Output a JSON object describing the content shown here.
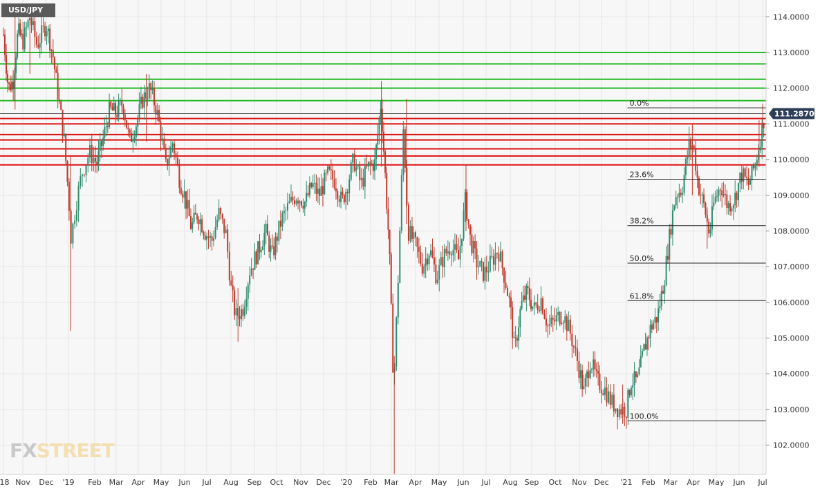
{
  "symbol": "USD/JPY",
  "logo": {
    "fx": "FX",
    "street": "STREET"
  },
  "colors": {
    "background": "#f7f7f7",
    "up": "#2e8b6e",
    "down": "#c0392b",
    "support": "#dd1111",
    "resistance": "#22bb22",
    "price_tag": "#2c3e5a",
    "grid": "#e6e6e6",
    "fib": "#222222"
  },
  "chart_data": {
    "type": "candlestick",
    "title": "",
    "ylim": [
      101.2,
      114.45
    ],
    "y_ticks": [
      "114.0000",
      "113.0000",
      "112.0000",
      "111.0000",
      "110.0000",
      "109.0000",
      "108.0000",
      "107.0000",
      "106.0000",
      "105.0000",
      "104.0000",
      "103.0000",
      "102.0000"
    ],
    "y_tick_values": [
      114,
      113,
      112,
      111,
      110,
      109,
      108,
      107,
      106,
      105,
      104,
      103,
      102
    ],
    "x_ticks": [
      "'18",
      "Nov",
      "Dec",
      "'19",
      "Feb",
      "Mar",
      "Apr",
      "May",
      "Jun",
      "Jul",
      "Aug",
      "Sep",
      "Oct",
      "Nov",
      "Dec",
      "'20",
      "Feb",
      "Mar",
      "Apr",
      "May",
      "Jun",
      "Jul",
      "Aug",
      "Sep",
      "Oct",
      "Nov",
      "Dec",
      "'21",
      "Feb",
      "Mar",
      "Apr",
      "May",
      "Jun",
      "Jul"
    ],
    "x_tick_index": [
      0,
      1,
      2,
      3,
      4,
      5,
      6,
      7,
      8,
      9,
      10,
      11,
      12,
      13,
      14,
      15,
      16,
      17,
      18,
      19,
      20,
      21,
      22,
      23,
      24,
      25,
      26,
      27,
      28,
      29,
      30,
      31,
      32,
      33
    ],
    "last_price": 111.287,
    "last_price_label": "111.2870",
    "resistance_levels": [
      113.0,
      112.68,
      112.25,
      112.0,
      111.65
    ],
    "support_levels": [
      111.15,
      111.0,
      110.7,
      110.55,
      110.3,
      110.1,
      109.85
    ],
    "fib_levels": [
      {
        "label": "0.0%",
        "value": 111.45
      },
      {
        "label": "23.6%",
        "value": 109.45
      },
      {
        "label": "38.2%",
        "value": 108.15
      },
      {
        "label": "50.0%",
        "value": 107.1
      },
      {
        "label": "61.8%",
        "value": 106.05
      },
      {
        "label": "100.0%",
        "value": 102.68
      }
    ],
    "price_path": [
      [
        0.0,
        113.5
      ],
      [
        0.25,
        112.0
      ],
      [
        0.5,
        112.2
      ],
      [
        0.75,
        113.6
      ],
      [
        1.0,
        113.3
      ],
      [
        1.3,
        114.0
      ],
      [
        1.6,
        113.2
      ],
      [
        2.0,
        113.8
      ],
      [
        2.3,
        112.9
      ],
      [
        2.6,
        111.5
      ],
      [
        2.8,
        110.6
      ],
      [
        3.0,
        109.0
      ],
      [
        3.1,
        107.8
      ],
      [
        3.3,
        108.8
      ],
      [
        3.5,
        109.6
      ],
      [
        3.8,
        110.2
      ],
      [
        4.1,
        109.9
      ],
      [
        4.4,
        110.6
      ],
      [
        4.7,
        111.4
      ],
      [
        5.0,
        111.3
      ],
      [
        5.3,
        111.6
      ],
      [
        5.6,
        110.5
      ],
      [
        5.9,
        111.0
      ],
      [
        6.2,
        111.7
      ],
      [
        6.5,
        112.0
      ],
      [
        6.8,
        111.4
      ],
      [
        7.0,
        110.7
      ],
      [
        7.2,
        109.8
      ],
      [
        7.5,
        110.5
      ],
      [
        7.8,
        109.4
      ],
      [
        8.0,
        109.0
      ],
      [
        8.3,
        108.1
      ],
      [
        8.6,
        108.5
      ],
      [
        8.9,
        108.0
      ],
      [
        9.2,
        107.7
      ],
      [
        9.5,
        108.5
      ],
      [
        9.8,
        107.9
      ],
      [
        10.0,
        106.4
      ],
      [
        10.2,
        105.6
      ],
      [
        10.5,
        105.8
      ],
      [
        10.8,
        106.9
      ],
      [
        11.2,
        107.5
      ],
      [
        11.5,
        108.0
      ],
      [
        11.8,
        107.3
      ],
      [
        12.2,
        108.3
      ],
      [
        12.5,
        108.7
      ],
      [
        12.8,
        109.0
      ],
      [
        13.2,
        108.8
      ],
      [
        13.5,
        109.3
      ],
      [
        13.8,
        109.0
      ],
      [
        14.2,
        109.6
      ],
      [
        14.5,
        109.4
      ],
      [
        14.8,
        108.8
      ],
      [
        15.0,
        109.2
      ],
      [
        15.3,
        110.0
      ],
      [
        15.6,
        109.3
      ],
      [
        15.9,
        109.8
      ],
      [
        16.2,
        109.9
      ],
      [
        16.5,
        111.6
      ],
      [
        16.7,
        109.6
      ],
      [
        16.9,
        107.5
      ],
      [
        17.1,
        103.6
      ],
      [
        17.3,
        107.0
      ],
      [
        17.5,
        110.9
      ],
      [
        17.7,
        108.0
      ],
      [
        18.0,
        107.6
      ],
      [
        18.3,
        107.0
      ],
      [
        18.6,
        107.5
      ],
      [
        18.9,
        106.7
      ],
      [
        19.2,
        107.3
      ],
      [
        19.5,
        107.6
      ],
      [
        19.8,
        107.2
      ],
      [
        20.1,
        108.9
      ],
      [
        20.3,
        107.8
      ],
      [
        20.6,
        107.1
      ],
      [
        20.9,
        106.8
      ],
      [
        21.2,
        107.1
      ],
      [
        21.5,
        107.5
      ],
      [
        21.8,
        106.6
      ],
      [
        22.0,
        105.9
      ],
      [
        22.2,
        104.6
      ],
      [
        22.5,
        105.9
      ],
      [
        22.8,
        106.3
      ],
      [
        23.1,
        105.8
      ],
      [
        23.4,
        106.1
      ],
      [
        23.7,
        105.3
      ],
      [
        24.0,
        105.5
      ],
      [
        24.3,
        105.7
      ],
      [
        24.6,
        105.2
      ],
      [
        24.9,
        104.4
      ],
      [
        25.2,
        103.5
      ],
      [
        25.5,
        104.4
      ],
      [
        25.8,
        103.8
      ],
      [
        26.1,
        103.6
      ],
      [
        26.4,
        103.2
      ],
      [
        26.7,
        103.0
      ],
      [
        27.0,
        103.0
      ],
      [
        27.2,
        103.8
      ],
      [
        27.5,
        103.8
      ],
      [
        27.8,
        104.7
      ],
      [
        28.1,
        105.3
      ],
      [
        28.4,
        105.6
      ],
      [
        28.7,
        106.6
      ],
      [
        29.0,
        108.1
      ],
      [
        29.2,
        109.0
      ],
      [
        29.5,
        109.2
      ],
      [
        29.8,
        110.4
      ],
      [
        30.0,
        110.4
      ],
      [
        30.2,
        109.3
      ],
      [
        30.5,
        108.6
      ],
      [
        30.7,
        107.9
      ],
      [
        30.9,
        108.8
      ],
      [
        31.2,
        109.3
      ],
      [
        31.5,
        108.7
      ],
      [
        31.8,
        108.9
      ],
      [
        32.1,
        109.6
      ],
      [
        32.4,
        109.3
      ],
      [
        32.7,
        109.9
      ],
      [
        32.9,
        110.6
      ],
      [
        33.1,
        111.3
      ]
    ],
    "spikes": [
      [
        3.08,
        105.2,
        110.1
      ],
      [
        10.3,
        104.9,
        106.4
      ],
      [
        17.12,
        101.2,
        104.5
      ],
      [
        16.52,
        109.8,
        112.2
      ],
      [
        17.62,
        108.2,
        111.7
      ],
      [
        20.12,
        108.0,
        109.85
      ],
      [
        26.85,
        102.6,
        103.7
      ],
      [
        6.35,
        110.5,
        112.4
      ],
      [
        0.6,
        111.4,
        114.3
      ],
      [
        1.3,
        112.4,
        114.35
      ],
      [
        29.95,
        109.0,
        111.0
      ],
      [
        32.85,
        109.8,
        111.1
      ],
      [
        33.0,
        110.9,
        111.55
      ],
      [
        30.6,
        107.5,
        108.6
      ]
    ]
  }
}
